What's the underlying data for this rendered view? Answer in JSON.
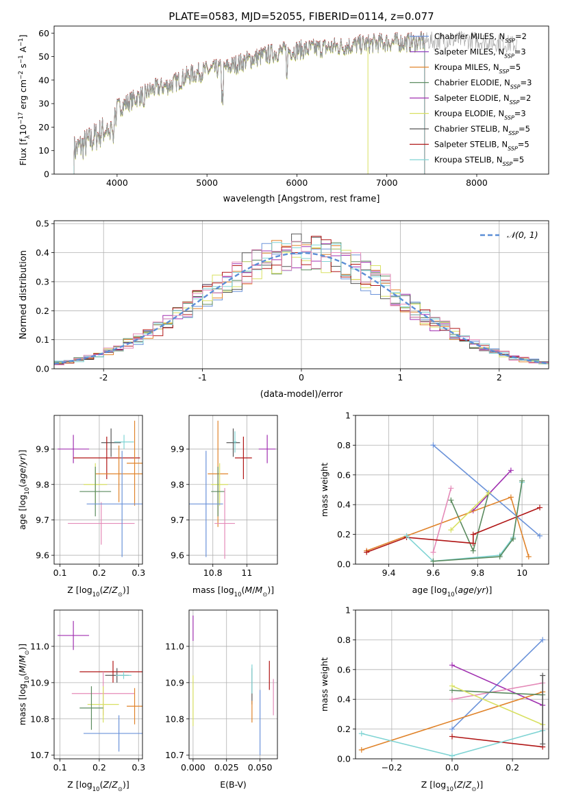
{
  "figure": {
    "title": "PLATE=0583, MJD=52055, FIBERID=0114, z=0.077",
    "colors": [
      "#6a92d9",
      "#8e3ec0",
      "#e0832a",
      "#5a8a5e",
      "#a02fb0",
      "#d8e060",
      "#555555",
      "#b01515",
      "#7fd4d4",
      "#e48ab8"
    ]
  },
  "chart_data": [
    {
      "id": "spectrum",
      "type": "line",
      "title": "PLATE=0583, MJD=52055, FIBERID=0114, z=0.077",
      "xlabel": "wavelength [Angstrom, rest frame]",
      "ylabel": "Flux [fλ10⁻¹⁷ erg cm⁻² s⁻¹ A⁻¹]",
      "xlim": [
        3300,
        8800
      ],
      "ylim": [
        0,
        63
      ],
      "xticks": [
        4000,
        5000,
        6000,
        7000,
        8000
      ],
      "yticks": [
        0,
        10,
        20,
        30,
        40,
        50,
        60
      ],
      "grid": false,
      "legend_position": "right",
      "data_trace": {
        "color": "#999999",
        "x_range": [
          3520,
          8450
        ]
      },
      "model_range": [
        3520,
        7420
      ],
      "continuum": [
        [
          3520,
          10
        ],
        [
          3700,
          14
        ],
        [
          3900,
          20
        ],
        [
          4000,
          28
        ],
        [
          4200,
          32
        ],
        [
          4400,
          36
        ],
        [
          4600,
          38
        ],
        [
          4800,
          42
        ],
        [
          5000,
          44
        ],
        [
          5200,
          45
        ],
        [
          5500,
          49
        ],
        [
          5800,
          52
        ],
        [
          6100,
          53
        ],
        [
          6400,
          54
        ],
        [
          6700,
          55
        ],
        [
          7000,
          56
        ],
        [
          7300,
          56
        ],
        [
          7600,
          57
        ],
        [
          8000,
          57
        ],
        [
          8450,
          55
        ]
      ],
      "series": [
        {
          "name": "Chabrier MILES, N_SSP=2",
          "color": "#6a92d9"
        },
        {
          "name": "Salpeter MILES, N_SSP=3",
          "color": "#8e3ec0"
        },
        {
          "name": "Kroupa MILES, N_SSP=5",
          "color": "#e0832a"
        },
        {
          "name": "Chabrier ELODIE, N_SSP=3",
          "color": "#5a8a5e"
        },
        {
          "name": "Salpeter ELODIE, N_SSP=2",
          "color": "#a02fb0"
        },
        {
          "name": "Kroupa ELODIE, N_SSP=3",
          "color": "#d8e060"
        },
        {
          "name": "Chabrier STELIB, N_SSP=5",
          "color": "#555555"
        },
        {
          "name": "Salpeter STELIB, N_SSP=5",
          "color": "#b01515"
        },
        {
          "name": "Kroupa STELIB, N_SSP=5",
          "color": "#7fd4d4"
        }
      ]
    },
    {
      "id": "residuals",
      "type": "histogram",
      "xlabel": "(data-model)/error",
      "ylabel": "Normed distribution",
      "xlim": [
        -2.5,
        2.5
      ],
      "ylim": [
        0,
        0.51
      ],
      "xticks": [
        -2,
        -1,
        0,
        1,
        2
      ],
      "yticks": [
        0.0,
        0.1,
        0.2,
        0.3,
        0.4,
        0.5
      ],
      "grid": true,
      "legend": "𝒩(0, 1)",
      "legend_position": "top-right",
      "gaussian": {
        "mu": 0,
        "sigma": 1,
        "color": "#5b8ed6"
      },
      "bin_width": 0.1,
      "series_colors": [
        "#6a92d9",
        "#e0832a",
        "#5a8a5e",
        "#a02fb0",
        "#d8e060",
        "#555555",
        "#b01515",
        "#7fd4d4",
        "#e48ab8"
      ]
    },
    {
      "id": "age_vs_Z",
      "type": "errorbar",
      "xlabel": "Z [log₁₀(Z/Z⊙)]",
      "ylabel": "age  [log₁₀(age/yr)]",
      "xlim": [
        0.085,
        0.31
      ],
      "ylim": [
        9.575,
        9.995
      ],
      "xticks": [
        0.1,
        0.2,
        0.3
      ],
      "yticks": [
        9.6,
        9.7,
        9.8,
        9.9
      ],
      "ytick_labels": [
        "9.6",
        "9.7",
        "9.8",
        "9.9"
      ],
      "grid": true,
      "points": [
        {
          "x": 0.134,
          "y": 9.9,
          "xerr": 0.04,
          "yerr": 0.04,
          "color": "#a02fb0"
        },
        {
          "x": 0.23,
          "y": 9.918,
          "xerr": 0.025,
          "yerr": 0.04,
          "color": "#555555"
        },
        {
          "x": 0.219,
          "y": 9.875,
          "xerr": 0.085,
          "yerr": 0.06,
          "color": "#b01515"
        },
        {
          "x": 0.263,
          "y": 9.92,
          "xerr": 0.025,
          "yerr": 0.02,
          "color": "#7fd4d4"
        },
        {
          "x": 0.29,
          "y": 9.86,
          "xerr": 0.02,
          "yerr": 0.12,
          "color": "#e0832a"
        },
        {
          "x": 0.25,
          "y": 9.83,
          "xerr": 0.06,
          "yerr": 0.08,
          "color": "#e0832a"
        },
        {
          "x": 0.19,
          "y": 9.8,
          "xerr": 0.03,
          "yerr": 0.06,
          "color": "#d8e060"
        },
        {
          "x": 0.19,
          "y": 9.78,
          "xerr": 0.04,
          "yerr": 0.07,
          "color": "#5a8a5e"
        },
        {
          "x": 0.205,
          "y": 9.69,
          "xerr": 0.085,
          "yerr": 0.06,
          "color": "#e48ab8"
        },
        {
          "x": 0.258,
          "y": 9.745,
          "xerr": 0.09,
          "yerr": 0.15,
          "color": "#6a92d9"
        }
      ]
    },
    {
      "id": "age_vs_mass",
      "type": "errorbar",
      "xlabel": "mass [log₁₀(M/M⊙)]",
      "xlim": [
        10.66,
        11.18
      ],
      "ylim": [
        9.575,
        9.995
      ],
      "xticks": [
        10.8,
        11.0
      ],
      "yticks": [
        9.6,
        9.7,
        9.8,
        9.9
      ],
      "ytick_labels": [
        "9.6",
        "9.7",
        "9.8",
        "9.9"
      ],
      "grid": true,
      "points": [
        {
          "x": 11.12,
          "y": 9.9,
          "xerr": 0.05,
          "yerr": 0.04,
          "color": "#a02fb0"
        },
        {
          "x": 10.92,
          "y": 9.918,
          "xerr": 0.04,
          "yerr": 0.04,
          "color": "#555555"
        },
        {
          "x": 10.98,
          "y": 9.875,
          "xerr": 0.05,
          "yerr": 0.06,
          "color": "#b01515"
        },
        {
          "x": 10.93,
          "y": 9.92,
          "xerr": 0.01,
          "yerr": 0.03,
          "color": "#7fd4d4"
        },
        {
          "x": 10.83,
          "y": 9.83,
          "xerr": 0.06,
          "yerr": 0.15,
          "color": "#e0832a"
        },
        {
          "x": 10.84,
          "y": 9.8,
          "xerr": 0.05,
          "yerr": 0.06,
          "color": "#d8e060"
        },
        {
          "x": 10.83,
          "y": 9.78,
          "xerr": 0.04,
          "yerr": 0.07,
          "color": "#5a8a5e"
        },
        {
          "x": 10.87,
          "y": 9.69,
          "xerr": 0.06,
          "yerr": 0.1,
          "color": "#e48ab8"
        },
        {
          "x": 10.76,
          "y": 9.745,
          "xerr": 0.1,
          "yerr": 0.15,
          "color": "#6a92d9"
        }
      ]
    },
    {
      "id": "weight_vs_age",
      "type": "line",
      "xlabel": "age  [log₁₀(age/yr)]",
      "ylabel": "mass weight",
      "xlim": [
        9.25,
        10.12
      ],
      "ylim": [
        0,
        1
      ],
      "xticks": [
        9.4,
        9.6,
        9.8,
        10.0
      ],
      "yticks": [
        0.0,
        0.2,
        0.4,
        0.6,
        0.8,
        1.0
      ],
      "grid": true,
      "series": [
        {
          "color": "#6a92d9",
          "x": [
            9.6,
            10.08
          ],
          "y": [
            0.8,
            0.19
          ]
        },
        {
          "color": "#a02fb0",
          "x": [
            9.78,
            9.95
          ],
          "y": [
            0.36,
            0.63
          ]
        },
        {
          "color": "#e0832a",
          "x": [
            9.3,
            9.95,
            10.03
          ],
          "y": [
            0.09,
            0.45,
            0.05
          ]
        },
        {
          "color": "#e48ab8",
          "x": [
            9.6,
            9.68
          ],
          "y": [
            0.08,
            0.51
          ]
        },
        {
          "color": "#5a8a5e",
          "x": [
            9.68,
            9.78,
            9.85
          ],
          "y": [
            0.43,
            0.09,
            0.48
          ]
        },
        {
          "color": "#d8e060",
          "x": [
            9.68,
            9.85
          ],
          "y": [
            0.23,
            0.48
          ]
        },
        {
          "color": "#b01515",
          "x": [
            9.3,
            9.48,
            9.78,
            9.78,
            10.08
          ],
          "y": [
            0.08,
            0.18,
            0.14,
            0.2,
            0.38
          ]
        },
        {
          "color": "#7fd4d4",
          "x": [
            9.48,
            9.6,
            9.9,
            9.96,
            10.0
          ],
          "y": [
            0.19,
            0.02,
            0.06,
            0.18,
            0.55
          ]
        },
        {
          "color": "#5a8a5e",
          "x": [
            9.6,
            9.9,
            9.96,
            10.0
          ],
          "y": [
            0.02,
            0.05,
            0.17,
            0.56
          ]
        }
      ]
    },
    {
      "id": "mass_vs_Z",
      "type": "errorbar",
      "xlabel": "Z [log₁₀(Z/Z⊙)]",
      "ylabel": "mass [log₁₀(M/M⊙)]",
      "xlim": [
        0.085,
        0.31
      ],
      "ylim": [
        10.69,
        11.1
      ],
      "xticks": [
        0.1,
        0.2,
        0.3
      ],
      "yticks": [
        10.7,
        10.8,
        10.9,
        11.0
      ],
      "ytick_labels": [
        "10.7",
        "10.8",
        "10.9",
        "11.0"
      ],
      "grid": true,
      "points": [
        {
          "x": 0.134,
          "y": 11.03,
          "xerr": 0.04,
          "yerr": 0.04,
          "color": "#a02fb0"
        },
        {
          "x": 0.235,
          "y": 10.93,
          "xerr": 0.085,
          "yerr": 0.03,
          "color": "#b01515"
        },
        {
          "x": 0.245,
          "y": 10.92,
          "xerr": 0.03,
          "yerr": 0.02,
          "color": "#555555"
        },
        {
          "x": 0.262,
          "y": 10.92,
          "xerr": 0.02,
          "yerr": 0.01,
          "color": "#7fd4d4"
        },
        {
          "x": 0.21,
          "y": 10.87,
          "xerr": 0.08,
          "yerr": 0.06,
          "color": "#e48ab8"
        },
        {
          "x": 0.29,
          "y": 10.835,
          "xerr": 0.02,
          "yerr": 0.05,
          "color": "#e0832a"
        },
        {
          "x": 0.21,
          "y": 10.84,
          "xerr": 0.04,
          "yerr": 0.05,
          "color": "#d8e060"
        },
        {
          "x": 0.18,
          "y": 10.83,
          "xerr": 0.03,
          "yerr": 0.06,
          "color": "#5a8a5e"
        },
        {
          "x": 0.25,
          "y": 10.76,
          "xerr": 0.09,
          "yerr": 0.05,
          "color": "#6a92d9"
        }
      ]
    },
    {
      "id": "mass_vs_EBV",
      "type": "errorbar",
      "xlabel": "E(B-V)",
      "xlim": [
        -0.003,
        0.063
      ],
      "ylim": [
        10.69,
        11.1
      ],
      "xticks": [
        0.0,
        0.025,
        0.05
      ],
      "xtick_labels": [
        "0.000",
        "0.025",
        "0.050"
      ],
      "yticks": [
        10.7,
        10.8,
        10.9,
        11.0
      ],
      "ytick_labels": [
        "10.7",
        "10.8",
        "10.9",
        "11.0"
      ],
      "grid": true,
      "points": [
        {
          "x": 0.0,
          "y": 11.05,
          "xerr": 0,
          "yerr": 0.035,
          "color": "#a02fb0"
        },
        {
          "x": 0.0,
          "y": 10.85,
          "xerr": 0,
          "yerr": 0.07,
          "color": "#d8e060"
        },
        {
          "x": 0.044,
          "y": 10.89,
          "xerr": 0,
          "yerr": 0.05,
          "color": "#555555"
        },
        {
          "x": 0.044,
          "y": 10.82,
          "xerr": 0,
          "yerr": 0.03,
          "color": "#e0832a"
        },
        {
          "x": 0.044,
          "y": 10.91,
          "xerr": 0,
          "yerr": 0.04,
          "color": "#7fd4d4"
        },
        {
          "x": 0.05,
          "y": 10.79,
          "xerr": 0,
          "yerr": 0.09,
          "color": "#6a92d9"
        },
        {
          "x": 0.057,
          "y": 10.92,
          "xerr": 0,
          "yerr": 0.04,
          "color": "#b01515"
        },
        {
          "x": 0.06,
          "y": 10.86,
          "xerr": 0,
          "yerr": 0.05,
          "color": "#e48ab8"
        }
      ]
    },
    {
      "id": "weight_vs_Z",
      "type": "line",
      "xlabel": "Z [log₁₀(Z/Z⊙)]",
      "ylabel": "mass weight",
      "xlim": [
        -0.32,
        0.32
      ],
      "ylim": [
        0,
        1
      ],
      "xticks": [
        -0.2,
        0.0,
        0.2
      ],
      "xtick_labels": [
        "−0.2",
        "0.0",
        "0.2"
      ],
      "yticks": [
        0.0,
        0.2,
        0.4,
        0.6,
        0.8,
        1.0
      ],
      "grid": true,
      "series": [
        {
          "color": "#6a92d9",
          "x": [
            0.0,
            0.3
          ],
          "y": [
            0.2,
            0.8
          ]
        },
        {
          "color": "#a02fb0",
          "x": [
            0.0,
            0.3
          ],
          "y": [
            0.63,
            0.36
          ]
        },
        {
          "color": "#e0832a",
          "x": [
            -0.3,
            0.3
          ],
          "y": [
            0.06,
            0.45
          ]
        },
        {
          "color": "#e48ab8",
          "x": [
            0.0,
            0.3
          ],
          "y": [
            0.4,
            0.51
          ]
        },
        {
          "color": "#5a8a5e",
          "x": [
            0.0,
            0.3
          ],
          "y": [
            0.46,
            0.43
          ]
        },
        {
          "color": "#d8e060",
          "x": [
            0.0,
            0.3
          ],
          "y": [
            0.49,
            0.23
          ]
        },
        {
          "color": "#b01515",
          "x": [
            0.0,
            0.3
          ],
          "y": [
            0.15,
            0.08
          ]
        },
        {
          "color": "#7fd4d4",
          "x": [
            -0.3,
            0.0,
            0.3
          ],
          "y": [
            0.17,
            0.02,
            0.19
          ]
        },
        {
          "color": "#555555",
          "x": [
            0.3,
            0.3
          ],
          "y": [
            0.56,
            0.1
          ]
        }
      ]
    }
  ]
}
